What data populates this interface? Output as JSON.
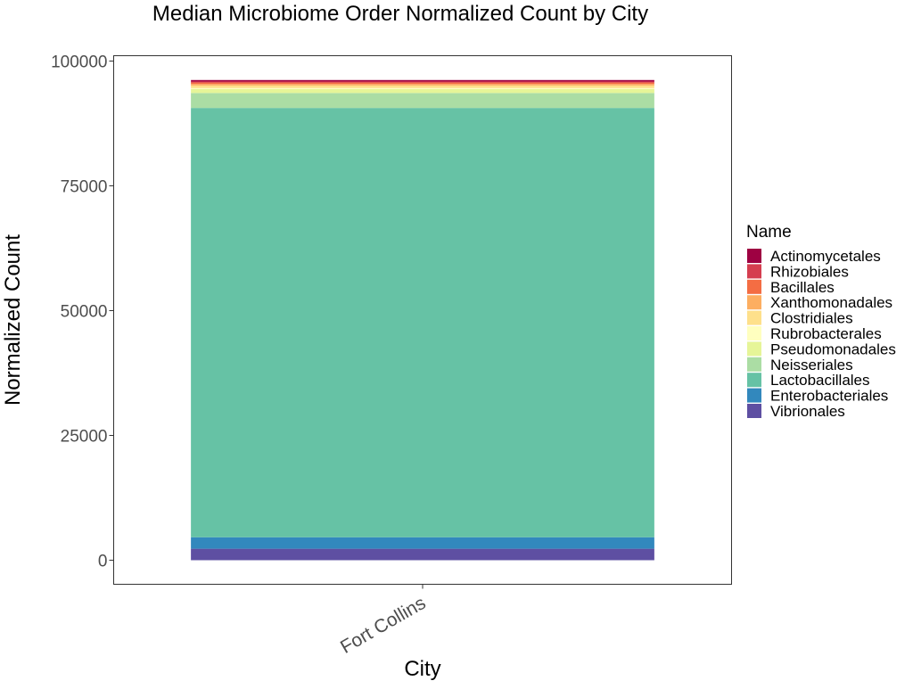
{
  "chart_data": {
    "type": "bar",
    "stacked": true,
    "title": "Median Microbiome Order Normalized Count by City",
    "xlabel": "City",
    "ylabel": "Normalized Count",
    "categories": [
      "Fort Collins"
    ],
    "ylim": [
      -5000,
      100000
    ],
    "yticks": [
      0,
      25000,
      50000,
      75000,
      100000
    ],
    "grid": false,
    "legend": {
      "title": "Name",
      "position": "right",
      "order": [
        "Actinomycetales",
        "Rhizobiales",
        "Bacillales",
        "Xanthomonadales",
        "Clostridiales",
        "Rubrobacterales",
        "Pseudomonadales",
        "Neisseriales",
        "Lactobacillales",
        "Enterobacteriales",
        "Vibrionales"
      ]
    },
    "series": [
      {
        "name": "Vibrionales",
        "color": "#5e4fa2",
        "values": [
          2300
        ]
      },
      {
        "name": "Enterobacteriales",
        "color": "#3288bd",
        "values": [
          2300
        ]
      },
      {
        "name": "Lactobacillales",
        "color": "#66c2a5",
        "values": [
          86000
        ]
      },
      {
        "name": "Neisseriales",
        "color": "#abdda4",
        "values": [
          3000
        ]
      },
      {
        "name": "Pseudomonadales",
        "color": "#e6f598",
        "values": [
          800
        ]
      },
      {
        "name": "Rubrobacterales",
        "color": "#ffffbf",
        "values": [
          200
        ]
      },
      {
        "name": "Clostridiales",
        "color": "#fee08b",
        "values": [
          500
        ]
      },
      {
        "name": "Xanthomonadales",
        "color": "#fdae61",
        "values": [
          300
        ]
      },
      {
        "name": "Bacillales",
        "color": "#f46d43",
        "values": [
          300
        ]
      },
      {
        "name": "Rhizobiales",
        "color": "#d53e4f",
        "values": [
          200
        ]
      },
      {
        "name": "Actinomycetales",
        "color": "#9e0142",
        "values": [
          300
        ]
      }
    ]
  }
}
